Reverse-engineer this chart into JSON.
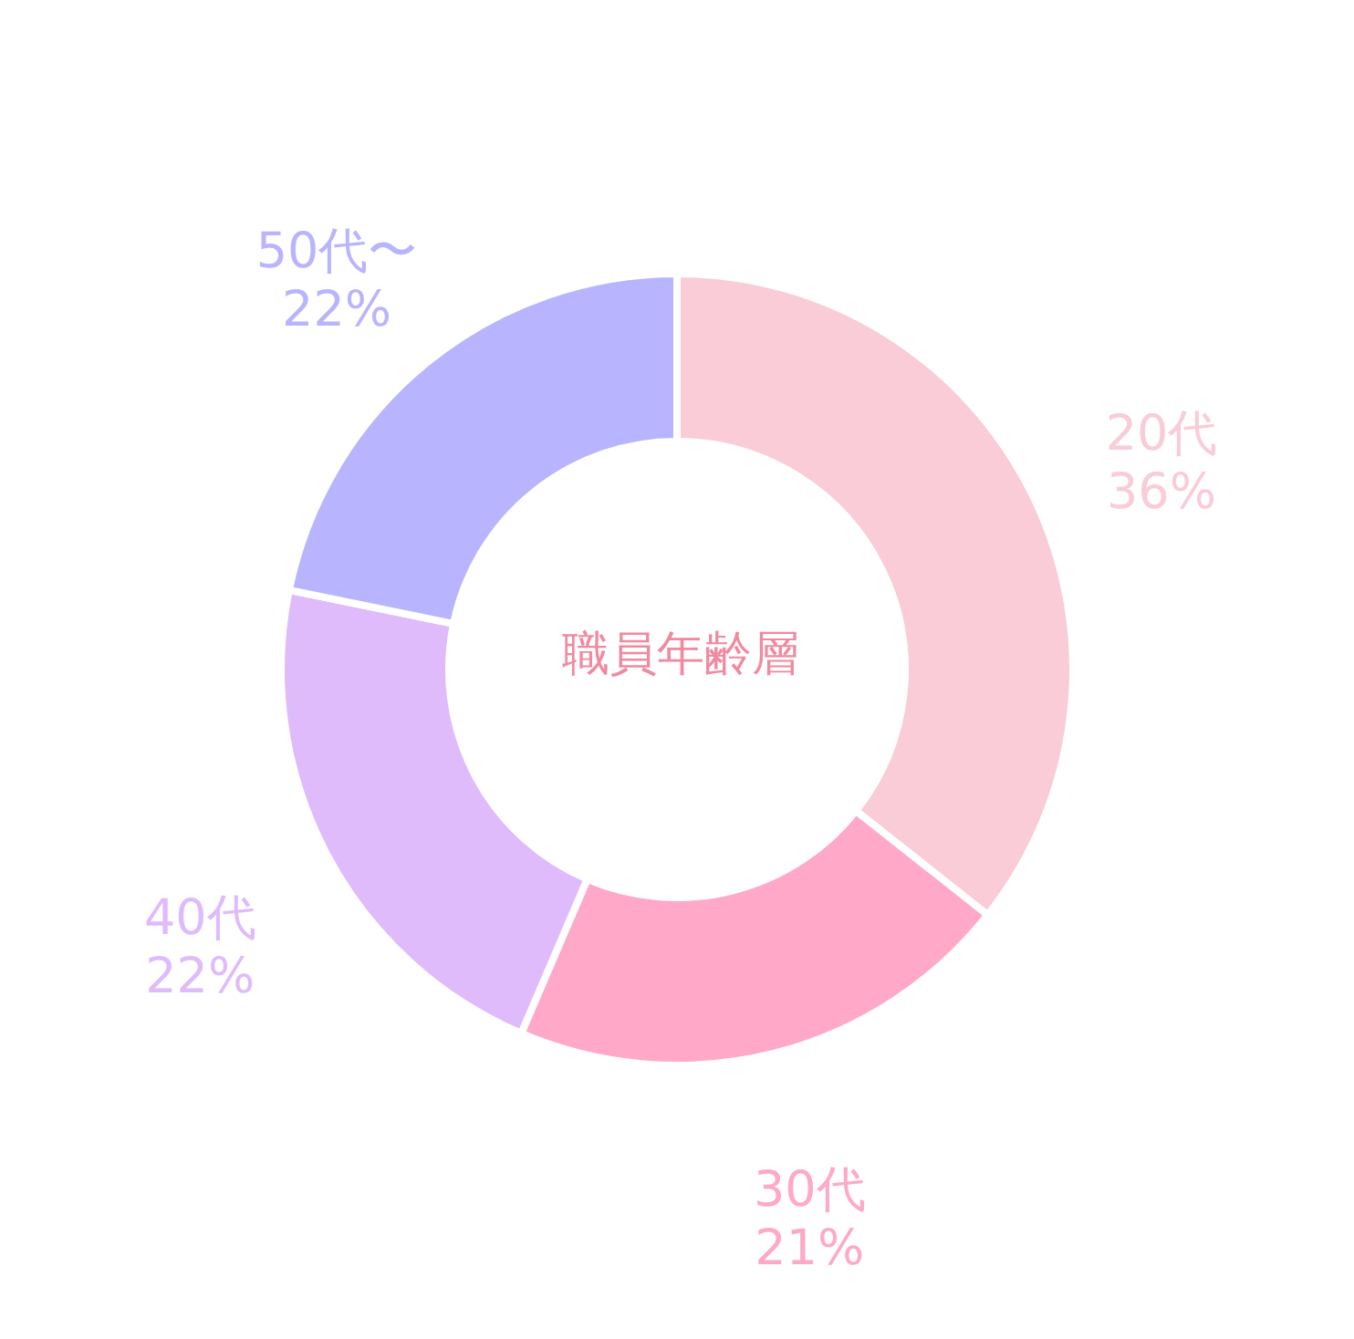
{
  "chart_data": {
    "type": "donut",
    "title": "職員年齢層",
    "categories": [
      "20代",
      "30代",
      "40代",
      "50代〜"
    ],
    "values": [
      36,
      21,
      22,
      22
    ],
    "value_labels": [
      "36%",
      "21%",
      "22%",
      "22%"
    ],
    "colors": [
      "#f9ccd7",
      "#ffa8c8",
      "#dfbbfc",
      "#b8b5fe"
    ]
  }
}
